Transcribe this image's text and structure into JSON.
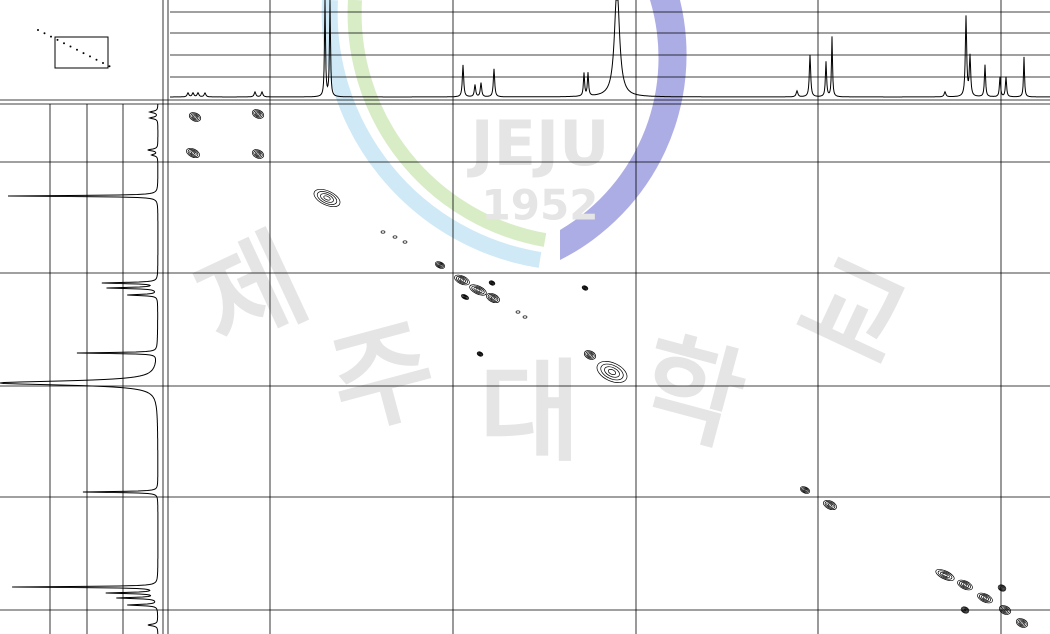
{
  "watermark": {
    "logo_text": "JEJU",
    "year": "1952",
    "characters": [
      "제",
      "주",
      "대",
      "학",
      "교"
    ]
  }
}
